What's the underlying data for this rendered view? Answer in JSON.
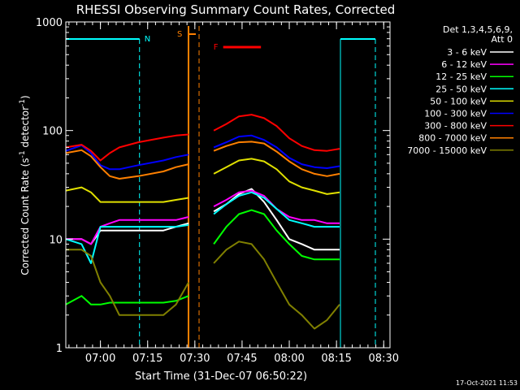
{
  "chart_data": {
    "type": "line",
    "title": "RHESSI Observing Summary Count Rates, Corrected",
    "xlabel": "Start Time (31-Dec-07 06:50:22)",
    "ylabel_parts": [
      "Corrected Count Rate (s",
      "-1",
      " detector",
      "-1",
      ")"
    ],
    "y_scale": "log",
    "ylim": [
      1,
      1000
    ],
    "xlim_minutes": [
      -1,
      102
    ],
    "x_ticks": [
      {
        "m": 10,
        "label": "07:00"
      },
      {
        "m": 25,
        "label": "07:15"
      },
      {
        "m": 40,
        "label": "07:30"
      },
      {
        "m": 55,
        "label": "07:45"
      },
      {
        "m": 70,
        "label": "08:00"
      },
      {
        "m": 85,
        "label": "08:15"
      },
      {
        "m": 100,
        "label": "08:30"
      }
    ],
    "y_ticks": [
      {
        "v": 1,
        "label": "1"
      },
      {
        "v": 10,
        "label": "10"
      },
      {
        "v": 100,
        "label": "100"
      },
      {
        "v": 1000,
        "label": "1000"
      }
    ],
    "legend_header": [
      "Det 1,3,4,5,6,9,",
      "Att 0"
    ],
    "footer": "17-Oct-2021 11:53",
    "segments": [
      [
        -1,
        38.5
      ],
      [
        46,
        86
      ]
    ],
    "series": [
      {
        "name": "3 - 6 keV",
        "color": "#ffffff",
        "points": [
          [
            -1,
            10
          ],
          [
            4,
            10
          ],
          [
            7,
            9
          ],
          [
            10,
            12
          ],
          [
            13,
            12
          ],
          [
            16,
            12
          ],
          [
            22,
            12
          ],
          [
            30,
            12
          ],
          [
            34,
            13
          ],
          [
            38,
            14
          ],
          [
            46,
            18
          ],
          [
            50,
            21
          ],
          [
            54,
            26
          ],
          [
            58,
            29
          ],
          [
            62,
            22
          ],
          [
            66,
            15
          ],
          [
            70,
            10
          ],
          [
            74,
            9
          ],
          [
            78,
            8
          ],
          [
            82,
            8
          ],
          [
            86,
            8
          ]
        ]
      },
      {
        "name": "6 - 12 keV",
        "color": "#ff00ff",
        "points": [
          [
            -1,
            10
          ],
          [
            4,
            10
          ],
          [
            7,
            9
          ],
          [
            10,
            13
          ],
          [
            13,
            14
          ],
          [
            16,
            15
          ],
          [
            22,
            15
          ],
          [
            30,
            15
          ],
          [
            34,
            15
          ],
          [
            38,
            16
          ],
          [
            46,
            20
          ],
          [
            50,
            23
          ],
          [
            54,
            27
          ],
          [
            58,
            28
          ],
          [
            62,
            25
          ],
          [
            66,
            19
          ],
          [
            70,
            16
          ],
          [
            74,
            15
          ],
          [
            78,
            15
          ],
          [
            82,
            14
          ],
          [
            86,
            14
          ]
        ]
      },
      {
        "name": "12 - 25 keV",
        "color": "#00ff00",
        "points": [
          [
            -1,
            2.5
          ],
          [
            4,
            3
          ],
          [
            7,
            2.5
          ],
          [
            10,
            2.5
          ],
          [
            13,
            2.6
          ],
          [
            16,
            2.6
          ],
          [
            22,
            2.6
          ],
          [
            30,
            2.6
          ],
          [
            34,
            2.7
          ],
          [
            38,
            3
          ],
          [
            46,
            9
          ],
          [
            50,
            13
          ],
          [
            54,
            17
          ],
          [
            58,
            18.5
          ],
          [
            62,
            17
          ],
          [
            66,
            12
          ],
          [
            70,
            9
          ],
          [
            74,
            7
          ],
          [
            78,
            6.5
          ],
          [
            82,
            6.5
          ],
          [
            86,
            6.5
          ]
        ]
      },
      {
        "name": "25 - 50 keV",
        "color": "#00ffff",
        "points": [
          [
            -1,
            10
          ],
          [
            4,
            9
          ],
          [
            7,
            6
          ],
          [
            10,
            13
          ],
          [
            13,
            13
          ],
          [
            16,
            13
          ],
          [
            22,
            13
          ],
          [
            30,
            13
          ],
          [
            34,
            13
          ],
          [
            38,
            13.5
          ],
          [
            46,
            17
          ],
          [
            50,
            21
          ],
          [
            54,
            25
          ],
          [
            58,
            27
          ],
          [
            62,
            24
          ],
          [
            66,
            19
          ],
          [
            70,
            15
          ],
          [
            74,
            14
          ],
          [
            78,
            13
          ],
          [
            82,
            13
          ],
          [
            86,
            13
          ]
        ]
      },
      {
        "name": "50 - 100 keV",
        "color": "#e0e000",
        "points": [
          [
            -1,
            28
          ],
          [
            4,
            30
          ],
          [
            7,
            27
          ],
          [
            10,
            22
          ],
          [
            13,
            22
          ],
          [
            16,
            22
          ],
          [
            22,
            22
          ],
          [
            30,
            22
          ],
          [
            34,
            23
          ],
          [
            38,
            24
          ],
          [
            46,
            40
          ],
          [
            50,
            46
          ],
          [
            54,
            53
          ],
          [
            58,
            55
          ],
          [
            62,
            52
          ],
          [
            66,
            44
          ],
          [
            70,
            34
          ],
          [
            74,
            30
          ],
          [
            78,
            28
          ],
          [
            82,
            26
          ],
          [
            86,
            27
          ]
        ]
      },
      {
        "name": "100 - 300 keV",
        "color": "#0000ff",
        "points": [
          [
            -1,
            65
          ],
          [
            4,
            73
          ],
          [
            7,
            62
          ],
          [
            10,
            48
          ],
          [
            13,
            44
          ],
          [
            16,
            44
          ],
          [
            22,
            48
          ],
          [
            30,
            53
          ],
          [
            34,
            57
          ],
          [
            38,
            60
          ],
          [
            46,
            70
          ],
          [
            50,
            78
          ],
          [
            54,
            88
          ],
          [
            58,
            90
          ],
          [
            62,
            82
          ],
          [
            66,
            70
          ],
          [
            70,
            56
          ],
          [
            74,
            49
          ],
          [
            78,
            46
          ],
          [
            82,
            45
          ],
          [
            86,
            47
          ]
        ]
      },
      {
        "name": "300 - 800 keV",
        "color": "#ff0000",
        "points": [
          [
            -1,
            70
          ],
          [
            4,
            74
          ],
          [
            7,
            65
          ],
          [
            10,
            53
          ],
          [
            13,
            62
          ],
          [
            16,
            70
          ],
          [
            22,
            78
          ],
          [
            30,
            86
          ],
          [
            34,
            90
          ],
          [
            38,
            92
          ],
          [
            46,
            100
          ],
          [
            50,
            115
          ],
          [
            54,
            135
          ],
          [
            58,
            140
          ],
          [
            62,
            130
          ],
          [
            66,
            110
          ],
          [
            70,
            85
          ],
          [
            74,
            72
          ],
          [
            78,
            66
          ],
          [
            82,
            65
          ],
          [
            86,
            68
          ]
        ]
      },
      {
        "name": "800 - 7000 keV",
        "color": "#ff8000",
        "points": [
          [
            -1,
            62
          ],
          [
            4,
            66
          ],
          [
            7,
            58
          ],
          [
            10,
            46
          ],
          [
            13,
            38
          ],
          [
            16,
            36
          ],
          [
            22,
            38
          ],
          [
            30,
            42
          ],
          [
            34,
            46
          ],
          [
            38,
            49
          ],
          [
            46,
            65
          ],
          [
            50,
            72
          ],
          [
            54,
            78
          ],
          [
            58,
            79
          ],
          [
            62,
            76
          ],
          [
            66,
            64
          ],
          [
            70,
            52
          ],
          [
            74,
            44
          ],
          [
            78,
            40
          ],
          [
            82,
            38
          ],
          [
            86,
            40
          ]
        ]
      },
      {
        "name": "7000 - 15000 keV",
        "color": "#808000",
        "points": [
          [
            -1,
            8
          ],
          [
            4,
            8
          ],
          [
            7,
            7
          ],
          [
            10,
            4
          ],
          [
            13,
            3
          ],
          [
            16,
            2
          ],
          [
            22,
            2
          ],
          [
            30,
            2
          ],
          [
            34,
            2.5
          ],
          [
            38,
            4
          ],
          [
            46,
            6
          ],
          [
            50,
            8
          ],
          [
            54,
            9.5
          ],
          [
            58,
            9
          ],
          [
            62,
            6.5
          ],
          [
            66,
            4
          ],
          [
            70,
            2.5
          ],
          [
            74,
            2
          ],
          [
            78,
            1.5
          ],
          [
            82,
            1.8
          ],
          [
            86,
            2.5
          ]
        ]
      }
    ],
    "annotations": [
      {
        "label": "N",
        "color": "#00ffff"
      },
      {
        "label": "S",
        "color": "#ff8000"
      },
      {
        "label": "F",
        "color": "#ff0000"
      }
    ]
  }
}
